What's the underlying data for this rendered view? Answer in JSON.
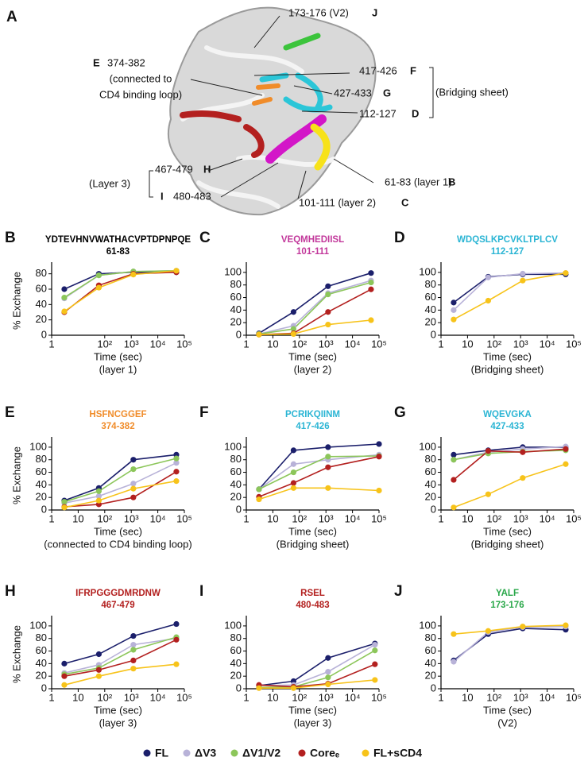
{
  "panel_a": {
    "labels": [
      "A",
      "173-176 (V2)",
      "J",
      "E",
      "374-382",
      "(connected to",
      "CD4 binding loop)",
      "417-426",
      "F",
      "427-433",
      "G",
      "(Bridging sheet)",
      "112-127",
      "D",
      "(Layer 3)",
      "467-479",
      "H",
      "I",
      "480-483",
      "61-83 (layer 1)",
      "B",
      "101-111 (layer 2)",
      "C"
    ]
  },
  "legend": [
    {
      "name": "FL",
      "color": "#1b1f6b"
    },
    {
      "name": "ΔV3",
      "color": "#b8b2d8"
    },
    {
      "name": "ΔV1/V2",
      "color": "#8cc65a"
    },
    {
      "name": "Coreₑ",
      "color": "#b3201f"
    },
    {
      "name": "FL+sCD4",
      "color": "#f7c31a"
    }
  ],
  "chart_data": [
    {
      "type": "line",
      "panel": "B",
      "title": "YDTEVHNVWATHACVPTDPNPQE",
      "subtitle": "61-83",
      "title_color": "#000000",
      "xlabel": "Time (sec)",
      "caption": "(layer 1)",
      "ylabel": "% Exchange",
      "xscale": "log",
      "xlim": [
        1,
        100000
      ],
      "xticks": [
        1,
        {
          "value": 100,
          "label": "10²"
        },
        {
          "value": 1000,
          "label": "10³"
        },
        {
          "value": 10000,
          "label": "10⁴"
        },
        {
          "value": 100000,
          "label": "10⁵"
        }
      ],
      "ylim": [
        0,
        90
      ],
      "yticks": [
        0,
        20,
        40,
        60,
        80
      ],
      "x": [
        3,
        60,
        1200,
        50000
      ],
      "series": [
        {
          "name": "FL",
          "values": [
            60,
            80,
            82,
            82
          ]
        },
        {
          "name": "ΔV3",
          "values": [
            48,
            78,
            83,
            84
          ]
        },
        {
          "name": "ΔV1/V2",
          "values": [
            49,
            78,
            83,
            84
          ]
        },
        {
          "name": "Coreₑ",
          "values": [
            30,
            65,
            80,
            82
          ]
        },
        {
          "name": "FL+sCD4",
          "values": [
            31,
            62,
            79,
            84
          ]
        }
      ]
    },
    {
      "type": "line",
      "panel": "C",
      "title": "VEQMHEDIISL",
      "subtitle": "101-111",
      "title_color": "#c2389b",
      "xlabel": "Time (sec)",
      "caption": "(layer 2)",
      "xscale": "log",
      "xlim": [
        1,
        100000
      ],
      "xticks": [
        1,
        10,
        {
          "value": 100,
          "label": "10²"
        },
        {
          "value": 1000,
          "label": "10³"
        },
        {
          "value": 10000,
          "label": "10⁴"
        },
        {
          "value": 100000,
          "label": "10⁵"
        }
      ],
      "ylim": [
        0,
        110
      ],
      "yticks": [
        0,
        20,
        40,
        60,
        80,
        100
      ],
      "x": [
        3,
        60,
        1200,
        50000
      ],
      "series": [
        {
          "name": "FL",
          "values": [
            3,
            37,
            78,
            99
          ]
        },
        {
          "name": "ΔV3",
          "values": [
            2,
            15,
            67,
            87
          ]
        },
        {
          "name": "ΔV1/V2",
          "values": [
            2,
            10,
            65,
            84
          ]
        },
        {
          "name": "Coreₑ",
          "values": [
            1,
            3,
            37,
            73
          ]
        },
        {
          "name": "FL+sCD4",
          "values": [
            1,
            2,
            17,
            24
          ]
        }
      ]
    },
    {
      "type": "line",
      "panel": "D",
      "title": "WDQSLKPCVKLTPLCV",
      "subtitle": "112-127",
      "title_color": "#2bb5d4",
      "xlabel": "Time (sec)",
      "caption": "(Bridging sheet)",
      "xscale": "log",
      "xlim": [
        1,
        100000
      ],
      "xticks": [
        1,
        10,
        {
          "value": 100,
          "label": "10²"
        },
        {
          "value": 1000,
          "label": "10³"
        },
        {
          "value": 10000,
          "label": "10⁴"
        },
        {
          "value": 100000,
          "label": "10⁵"
        }
      ],
      "ylim": [
        0,
        110
      ],
      "yticks": [
        0,
        20,
        40,
        60,
        80,
        100
      ],
      "x": [
        3,
        60,
        1200,
        50000
      ],
      "series": [
        {
          "name": "FL",
          "values": [
            52,
            93,
            97,
            97
          ]
        },
        {
          "name": "ΔV3",
          "values": [
            40,
            92,
            98,
            99
          ]
        },
        {
          "name": "FL+sCD4",
          "values": [
            25,
            55,
            87,
            99
          ]
        }
      ]
    },
    {
      "type": "line",
      "panel": "E",
      "title": "HSFNCGGEF",
      "subtitle": "374-382",
      "title_color": "#f08c2a",
      "xlabel": "Time (sec)",
      "caption": "(connected to CD4 binding loop)",
      "ylabel": "% Exchange",
      "xscale": "log",
      "xlim": [
        1,
        100000
      ],
      "xticks": [
        1,
        10,
        {
          "value": 100,
          "label": "10²"
        },
        {
          "value": 1000,
          "label": "10³"
        },
        {
          "value": 10000,
          "label": "10⁴"
        },
        {
          "value": 100000,
          "label": "10⁵"
        }
      ],
      "ylim": [
        0,
        110
      ],
      "yticks": [
        0,
        20,
        40,
        60,
        80,
        100
      ],
      "x": [
        3,
        60,
        1200,
        50000
      ],
      "series": [
        {
          "name": "FL",
          "values": [
            15,
            35,
            80,
            88
          ]
        },
        {
          "name": "ΔV3",
          "values": [
            11,
            22,
            42,
            75
          ]
        },
        {
          "name": "ΔV1/V2",
          "values": [
            13,
            30,
            65,
            82
          ]
        },
        {
          "name": "Coreₑ",
          "values": [
            5,
            9,
            20,
            61
          ]
        },
        {
          "name": "FL+sCD4",
          "values": [
            4,
            15,
            34,
            46
          ]
        }
      ]
    },
    {
      "type": "line",
      "panel": "F",
      "title": "PCRIKQIINM",
      "subtitle": "417-426",
      "title_color": "#2bb5d4",
      "xlabel": "Time (sec)",
      "caption": "(Bridging sheet)",
      "xscale": "log",
      "xlim": [
        1,
        100000
      ],
      "xticks": [
        1,
        10,
        {
          "value": 100,
          "label": "10²"
        },
        {
          "value": 1000,
          "label": "10³"
        },
        {
          "value": 10000,
          "label": "10⁴"
        },
        {
          "value": 100000,
          "label": "10⁵"
        }
      ],
      "ylim": [
        0,
        110
      ],
      "yticks": [
        0,
        20,
        40,
        60,
        80,
        100
      ],
      "x": [
        3,
        60,
        1200,
        100000
      ],
      "series": [
        {
          "name": "FL",
          "values": [
            33,
            95,
            100,
            105
          ]
        },
        {
          "name": "ΔV3",
          "values": [
            33,
            73,
            80,
            88
          ]
        },
        {
          "name": "ΔV1/V2",
          "values": [
            33,
            60,
            85,
            86
          ]
        },
        {
          "name": "Coreₑ",
          "values": [
            21,
            43,
            68,
            85
          ]
        },
        {
          "name": "FL+sCD4",
          "values": [
            17,
            35,
            35,
            31
          ]
        }
      ]
    },
    {
      "type": "line",
      "panel": "G",
      "title": "WQEVGKA",
      "subtitle": "427-433",
      "title_color": "#2bb5d4",
      "xlabel": "Time (sec)",
      "caption": "(Bridging sheet)",
      "xscale": "log",
      "xlim": [
        1,
        100000
      ],
      "xticks": [
        1,
        10,
        {
          "value": 100,
          "label": "10²"
        },
        {
          "value": 1000,
          "label": "10³"
        },
        {
          "value": 10000,
          "label": "10⁴"
        },
        {
          "value": 100000,
          "label": "10⁵"
        }
      ],
      "ylim": [
        0,
        110
      ],
      "yticks": [
        0,
        20,
        40,
        60,
        80,
        100
      ],
      "x": [
        3,
        60,
        1200,
        50000
      ],
      "series": [
        {
          "name": "FL",
          "values": [
            88,
            95,
            100,
            100
          ]
        },
        {
          "name": "ΔV3",
          "values": [
            80,
            92,
            97,
            101
          ]
        },
        {
          "name": "ΔV1/V2",
          "values": [
            80,
            90,
            93,
            95
          ]
        },
        {
          "name": "Coreₑ",
          "values": [
            48,
            94,
            92,
            97
          ]
        },
        {
          "name": "FL+sCD4",
          "values": [
            4,
            25,
            51,
            73
          ]
        }
      ]
    },
    {
      "type": "line",
      "panel": "H",
      "title": "IFRPGGGDMRDNW",
      "subtitle": "467-479",
      "title_color": "#b3201f",
      "xlabel": "Time (sec)",
      "caption": "(layer 3)",
      "ylabel": "% Exchange",
      "xscale": "log",
      "xlim": [
        1,
        100000
      ],
      "xticks": [
        1,
        10,
        {
          "value": 100,
          "label": "10²"
        },
        {
          "value": 1000,
          "label": "10³"
        },
        {
          "value": 10000,
          "label": "10⁴"
        },
        {
          "value": 100000,
          "label": "10⁵"
        }
      ],
      "ylim": [
        0,
        110
      ],
      "yticks": [
        0,
        20,
        40,
        60,
        80,
        100
      ],
      "x": [
        3,
        60,
        1200,
        50000
      ],
      "series": [
        {
          "name": "FL",
          "values": [
            40,
            55,
            84,
            103
          ]
        },
        {
          "name": "ΔV3",
          "values": [
            25,
            38,
            70,
            80
          ]
        },
        {
          "name": "ΔV1/V2",
          "values": [
            23,
            33,
            62,
            82
          ]
        },
        {
          "name": "Coreₑ",
          "values": [
            20,
            30,
            45,
            78
          ]
        },
        {
          "name": "FL+sCD4",
          "values": [
            6,
            20,
            32,
            39
          ]
        }
      ]
    },
    {
      "type": "line",
      "panel": "I",
      "title": "RSEL",
      "subtitle": "480-483",
      "title_color": "#b3201f",
      "xlabel": "Time (sec)",
      "caption": "(layer 3)",
      "xscale": "log",
      "xlim": [
        1,
        100000
      ],
      "xticks": [
        1,
        10,
        {
          "value": 100,
          "label": "10²"
        },
        {
          "value": 1000,
          "label": "10³"
        },
        {
          "value": 10000,
          "label": "10⁴"
        },
        {
          "value": 100000,
          "label": "10⁵"
        }
      ],
      "ylim": [
        0,
        110
      ],
      "yticks": [
        0,
        20,
        40,
        60,
        80,
        100
      ],
      "x": [
        3,
        60,
        1200,
        70000
      ],
      "series": [
        {
          "name": "FL",
          "values": [
            5,
            12,
            49,
            72
          ]
        },
        {
          "name": "ΔV3",
          "values": [
            5,
            6,
            27,
            70
          ]
        },
        {
          "name": "ΔV1/V2",
          "values": [
            2,
            3,
            18,
            61
          ]
        },
        {
          "name": "Coreₑ",
          "values": [
            6,
            3,
            8,
            39
          ]
        },
        {
          "name": "FL+sCD4",
          "values": [
            1,
            1,
            7,
            14
          ]
        }
      ]
    },
    {
      "type": "line",
      "panel": "J",
      "title": "YALF",
      "subtitle": "173-176",
      "title_color": "#2aa84a",
      "xlabel": "Time (sec)",
      "caption": "(V2)",
      "xscale": "log",
      "xlim": [
        1,
        100000
      ],
      "xticks": [
        1,
        10,
        {
          "value": 100,
          "label": "10²"
        },
        {
          "value": 1000,
          "label": "10³"
        },
        {
          "value": 10000,
          "label": "10⁴"
        },
        {
          "value": 100000,
          "label": "10⁵"
        }
      ],
      "ylim": [
        0,
        110
      ],
      "yticks": [
        0,
        20,
        40,
        60,
        80,
        100
      ],
      "x": [
        3,
        60,
        1200,
        50000
      ],
      "series": [
        {
          "name": "FL",
          "values": [
            45,
            87,
            96,
            94
          ]
        },
        {
          "name": "ΔV3",
          "values": [
            43,
            90,
            98,
            99
          ]
        },
        {
          "name": "FL+sCD4",
          "values": [
            87,
            92,
            99,
            101
          ]
        }
      ]
    }
  ]
}
